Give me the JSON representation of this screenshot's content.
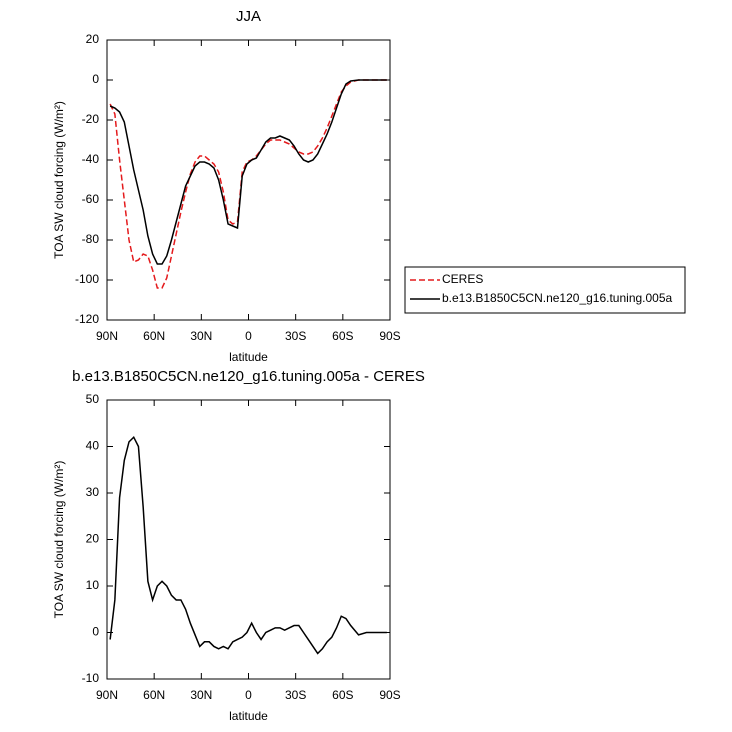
{
  "chart_data": [
    {
      "type": "line",
      "title": "JJA",
      "xlabel": "latitude",
      "ylabel": "TOA SW cloud forcing (W/m²)",
      "xlim": [
        90,
        -90
      ],
      "xticks": [
        {
          "value": 90,
          "label": "90N"
        },
        {
          "value": 60,
          "label": "60N"
        },
        {
          "value": 30,
          "label": "30N"
        },
        0,
        {
          "value": -30,
          "label": "30S"
        },
        {
          "value": -60,
          "label": "60S"
        },
        {
          "value": -90,
          "label": "90S"
        }
      ],
      "ylim": [
        -120,
        20
      ],
      "yticks": [
        -120,
        -100,
        -80,
        -60,
        -40,
        -20,
        0,
        20
      ],
      "legend": "right",
      "x": [
        88,
        85,
        82,
        79,
        76,
        73,
        70,
        67,
        64,
        61,
        58,
        55,
        52,
        49,
        46,
        43,
        40,
        37,
        34,
        31,
        28,
        25,
        22,
        19,
        16,
        13,
        10,
        7,
        4,
        1,
        -2,
        -5,
        -8,
        -11,
        -14,
        -17,
        -20,
        -23,
        -26,
        -29,
        -32,
        -35,
        -38,
        -41,
        -44,
        -47,
        -50,
        -53,
        -56,
        -59,
        -62,
        -65,
        -70,
        -75,
        -80,
        -85,
        -88
      ],
      "series": [
        {
          "name": "CERES",
          "color": "#e41a1c",
          "line_style": "dashed",
          "values": [
            -12,
            -17,
            -40,
            -60,
            -80,
            -91,
            -90,
            -87,
            -88,
            -95,
            -104,
            -104,
            -99,
            -88,
            -77,
            -66,
            -56,
            -47,
            -41,
            -38,
            -38,
            -40,
            -42,
            -46,
            -56,
            -70,
            -72,
            -71,
            -46,
            -41,
            -40,
            -38,
            -35,
            -32,
            -30,
            -30,
            -30,
            -31,
            -32,
            -34,
            -36,
            -37,
            -37,
            -36,
            -33,
            -29,
            -24,
            -18,
            -12,
            -6,
            -3,
            -1,
            0,
            0,
            0,
            0,
            0
          ]
        },
        {
          "name": "b.e13.B1850C5CN.ne120_g16.tuning.005a",
          "color": "#000000",
          "line_style": "solid",
          "values": [
            -13,
            -14,
            -16,
            -21,
            -33,
            -45,
            -55,
            -65,
            -78,
            -87,
            -92,
            -92,
            -88,
            -80,
            -71,
            -62,
            -53,
            -48,
            -43,
            -41,
            -41,
            -42,
            -44,
            -50,
            -60,
            -72,
            -73,
            -74,
            -48,
            -42,
            -40,
            -39,
            -35,
            -31,
            -29,
            -29,
            -28,
            -29,
            -30,
            -33,
            -37,
            -40,
            -41,
            -40,
            -37,
            -32,
            -27,
            -21,
            -14,
            -7,
            -2,
            -0.5,
            0,
            0,
            0,
            0,
            0
          ]
        }
      ]
    },
    {
      "type": "line",
      "title": "b.e13.B1850C5CN.ne120_g16.tuning.005a - CERES",
      "xlabel": "latitude",
      "ylabel": "TOA SW cloud forcing (W/m²)",
      "xlim": [
        90,
        -90
      ],
      "xticks": [
        {
          "value": 90,
          "label": "90N"
        },
        {
          "value": 60,
          "label": "60N"
        },
        {
          "value": 30,
          "label": "30N"
        },
        0,
        {
          "value": -30,
          "label": "30S"
        },
        {
          "value": -60,
          "label": "60S"
        },
        {
          "value": -90,
          "label": "90S"
        }
      ],
      "ylim": [
        -10,
        50
      ],
      "yticks": [
        -10,
        0,
        10,
        20,
        30,
        40,
        50
      ],
      "x": [
        88,
        85,
        82,
        79,
        76,
        73,
        70,
        67,
        64,
        61,
        58,
        55,
        52,
        49,
        46,
        43,
        40,
        37,
        34,
        31,
        28,
        25,
        22,
        19,
        16,
        13,
        10,
        7,
        4,
        1,
        -2,
        -5,
        -8,
        -11,
        -14,
        -17,
        -20,
        -23,
        -26,
        -29,
        -32,
        -35,
        -38,
        -41,
        -44,
        -47,
        -50,
        -53,
        -56,
        -59,
        -62,
        -65,
        -70,
        -75,
        -80,
        -85,
        -88
      ],
      "series": [
        {
          "color": "#000000",
          "line_style": "solid",
          "values": [
            -1.5,
            7,
            29,
            37,
            41,
            42,
            40,
            27,
            11,
            7,
            10,
            11,
            10,
            8,
            7,
            7,
            5,
            2,
            -0.5,
            -3,
            -2,
            -2,
            -3,
            -3.5,
            -3,
            -3.5,
            -2,
            -1.5,
            -1,
            0,
            2,
            0,
            -1.5,
            0,
            0.5,
            1,
            1,
            0.5,
            1,
            1.5,
            1.5,
            0,
            -1.5,
            -3,
            -4.5,
            -3.5,
            -2,
            -1,
            1,
            3.5,
            3,
            1.5,
            -0.5,
            0,
            0,
            0,
            0
          ]
        }
      ]
    }
  ]
}
